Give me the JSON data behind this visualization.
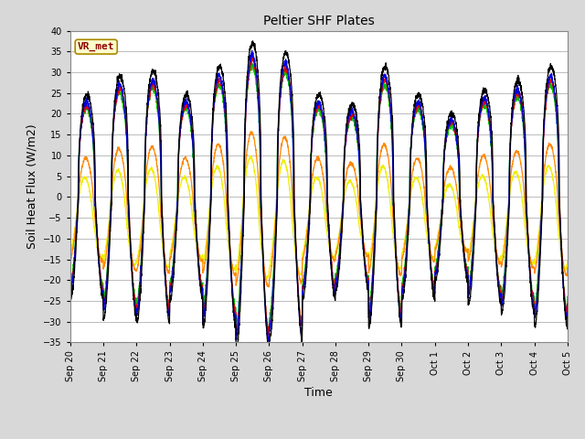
{
  "title": "Peltier SHF Plates",
  "xlabel": "Time",
  "ylabel": "Soil Heat Flux (W/m2)",
  "ylim": [
    -35,
    40
  ],
  "yticks": [
    -35,
    -30,
    -25,
    -20,
    -15,
    -10,
    -5,
    0,
    5,
    10,
    15,
    20,
    25,
    30,
    35,
    40
  ],
  "annotation": "VR_met",
  "annotation_color": "#8B0000",
  "annotation_bg": "#FFFFCC",
  "series_colors": {
    "pSHF 1": "#DD0000",
    "pSHF 2": "#0000DD",
    "pSHF 3": "#00BB00",
    "pSHF 4": "#FF8800",
    "pSHF 5": "#EEEE00",
    "Hukseflux": "#000000"
  },
  "background_color": "#D8D8D8",
  "plot_bg_color": "#FFFFFF",
  "grid_color": "#BBBBBB",
  "xtick_labels": [
    "Sep 20",
    "Sep 21",
    "Sep 22",
    "Sep 23",
    "Sep 24",
    "Sep 25",
    "Sep 26",
    "Sep 27",
    "Sep 28",
    "Sep 29",
    "Sep 30",
    "Oct 1",
    "Oct 2",
    "Oct 3",
    "Oct 4",
    "Oct 5"
  ]
}
